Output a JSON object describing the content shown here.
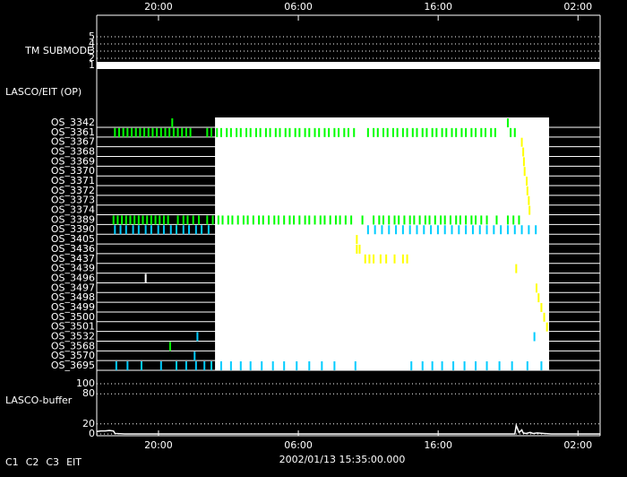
{
  "chart_data": {
    "type": "timeline",
    "timestamp": "2002/01/13 15:35:00.000",
    "xlim": [
      0,
      36
    ],
    "xticks": [
      {
        "value": 4.4167,
        "label": "20:00"
      },
      {
        "value": 14.4167,
        "label": "06:00"
      },
      {
        "value": 24.4167,
        "label": "16:00"
      },
      {
        "value": 34.4167,
        "label": "02:00"
      }
    ],
    "submode": {
      "label": "TM SUBMODE",
      "ylim": [
        0.5,
        5.5
      ],
      "yticks": [
        1,
        2,
        3,
        4,
        5
      ],
      "x": [
        0,
        36
      ],
      "values": [
        1,
        1
      ],
      "color": "#ffffff"
    },
    "ops": {
      "label": "LASCO/EIT (OP)",
      "white_range": [
        8.46,
        32.35
      ],
      "rows": [
        {
          "name": "OS_3342",
          "color": "#00ff00",
          "events": [
            5.4,
            29.4
          ]
        },
        {
          "name": "OS_3361",
          "color": "#00ff00",
          "events": [
            1.3,
            1.6,
            1.9,
            2.2,
            2.5,
            2.8,
            3.1,
            3.4,
            3.7,
            4.0,
            4.3,
            4.6,
            4.9,
            5.2,
            5.5,
            5.8,
            6.1,
            6.4,
            6.7,
            7.9,
            8.2,
            8.6,
            8.9,
            9.3,
            9.6,
            10.0,
            10.3,
            10.7,
            11.0,
            11.4,
            11.7,
            12.1,
            12.4,
            12.8,
            13.1,
            13.5,
            13.8,
            14.2,
            14.5,
            14.9,
            15.2,
            15.6,
            15.9,
            16.3,
            16.6,
            17.0,
            17.3,
            17.7,
            18.0,
            18.4,
            19.4,
            19.8,
            20.1,
            20.5,
            20.8,
            21.2,
            21.5,
            21.9,
            22.2,
            22.6,
            22.9,
            23.3,
            23.6,
            24.0,
            24.3,
            24.7,
            25.0,
            25.4,
            25.7,
            26.1,
            26.4,
            26.8,
            27.1,
            27.5,
            27.8,
            28.2,
            28.5,
            29.6,
            29.9
          ]
        },
        {
          "name": "OS_3367",
          "color": "#ffff00",
          "events": [
            30.4
          ]
        },
        {
          "name": "OS_3368",
          "color": "#ffff00",
          "events": [
            30.5
          ]
        },
        {
          "name": "OS_3369",
          "color": "#ffff00",
          "events": [
            30.55
          ]
        },
        {
          "name": "OS_3370",
          "color": "#ffff00",
          "events": [
            30.6
          ]
        },
        {
          "name": "OS_3371",
          "color": "#ffff00",
          "events": [
            30.75
          ]
        },
        {
          "name": "OS_3372",
          "color": "#ffff00",
          "events": [
            30.8
          ]
        },
        {
          "name": "OS_3373",
          "color": "#ffff00",
          "events": [
            30.9
          ]
        },
        {
          "name": "OS_3374",
          "color": "#ffff00",
          "events": [
            30.95
          ]
        },
        {
          "name": "OS_3389",
          "color": "#00ff00",
          "events": [
            1.2,
            1.5,
            1.8,
            2.1,
            2.4,
            2.7,
            3.0,
            3.3,
            3.6,
            3.9,
            4.2,
            4.5,
            4.8,
            5.1,
            5.8,
            6.2,
            6.5,
            6.9,
            7.3,
            7.9,
            8.3,
            8.7,
            9.0,
            9.4,
            9.7,
            10.1,
            10.5,
            10.8,
            11.2,
            11.6,
            11.9,
            12.3,
            12.7,
            13.0,
            13.4,
            13.8,
            14.1,
            14.5,
            14.9,
            15.2,
            15.6,
            16.0,
            16.3,
            16.7,
            17.1,
            17.4,
            17.8,
            18.2,
            19.0,
            19.8,
            20.2,
            20.5,
            20.9,
            21.3,
            21.6,
            22.0,
            22.4,
            22.7,
            23.1,
            23.5,
            23.8,
            24.2,
            24.6,
            24.9,
            25.3,
            25.7,
            26.0,
            26.4,
            26.8,
            27.1,
            27.5,
            27.9,
            28.6,
            29.4,
            29.8,
            30.2
          ]
        },
        {
          "name": "OS_3390",
          "color": "#00ccff",
          "events": [
            1.3,
            1.7,
            2.1,
            2.6,
            3.0,
            3.5,
            3.9,
            4.4,
            4.8,
            5.3,
            5.7,
            6.2,
            6.6,
            7.1,
            7.5,
            8.0,
            19.4,
            19.9,
            20.4,
            20.9,
            21.4,
            21.9,
            22.4,
            22.9,
            23.4,
            23.9,
            24.4,
            24.9,
            25.4,
            25.9,
            26.4,
            26.9,
            27.4,
            27.9,
            28.4,
            28.9,
            29.4,
            29.9,
            30.4,
            30.9,
            31.4
          ]
        },
        {
          "name": "OS_3405",
          "color": "#ffff00",
          "events": [
            18.6
          ]
        },
        {
          "name": "OS_3436",
          "color": "#ffff00",
          "events": [
            18.6,
            18.8
          ]
        },
        {
          "name": "OS_3437",
          "color": "#ffff00",
          "events": [
            19.2,
            19.5,
            19.8,
            20.3,
            20.7,
            21.3,
            21.9,
            22.2
          ]
        },
        {
          "name": "OS_3439",
          "color": "#ffff00",
          "events": [
            30.0
          ]
        },
        {
          "name": "OS_3496",
          "color": "#ffffff",
          "events": [
            3.5
          ]
        },
        {
          "name": "OS_3497",
          "color": "#ffff00",
          "events": [
            31.45
          ]
        },
        {
          "name": "OS_3498",
          "color": "#ffff00",
          "events": [
            31.6
          ]
        },
        {
          "name": "OS_3499",
          "color": "#ffff00",
          "events": [
            31.8
          ]
        },
        {
          "name": "OS_3500",
          "color": "#ffff00",
          "events": [
            32.0
          ]
        },
        {
          "name": "OS_3501",
          "color": "#ffff00",
          "events": [
            32.2
          ]
        },
        {
          "name": "OS_3532",
          "color": "#00ccff",
          "events": [
            7.2,
            31.3
          ]
        },
        {
          "name": "OS_3568",
          "color": "#00ff00",
          "events": [
            5.25
          ]
        },
        {
          "name": "OS_3570",
          "color": "#00ccff",
          "events": [
            7.0
          ]
        },
        {
          "name": "OS_3695",
          "color": "#00ccff",
          "events": [
            1.4,
            2.2,
            3.2,
            4.6,
            5.7,
            6.4,
            7.1,
            7.7,
            8.2,
            8.9,
            9.6,
            10.3,
            11.0,
            11.8,
            12.6,
            13.4,
            14.3,
            15.2,
            16.1,
            17.0,
            18.5,
            22.5,
            23.3,
            24.0,
            24.7,
            25.5,
            26.3,
            27.1,
            27.9,
            28.8,
            29.7,
            30.8,
            31.8
          ]
        }
      ]
    },
    "buffer": {
      "label": "LASCO-buffer",
      "ylim": [
        0,
        100
      ],
      "yticks": [
        0,
        20,
        80,
        100
      ],
      "color": "#ffffff",
      "x": [
        0,
        0.3,
        0.6,
        0.9,
        1.2,
        1.3,
        2,
        29.9,
        30.0,
        30.1,
        30.2,
        30.4,
        30.5,
        30.7,
        31.0,
        31.2,
        31.5,
        32.0,
        32.5,
        36
      ],
      "values": [
        5,
        6,
        6,
        7,
        6,
        1,
        0,
        0,
        17,
        10,
        3,
        8,
        2,
        1,
        3,
        1,
        2,
        1,
        0,
        0
      ]
    },
    "legend": [
      {
        "name": "C1",
        "color": "#ff3333"
      },
      {
        "name": "C2",
        "color": "#33ff33"
      },
      {
        "name": "C3",
        "color": "#66ddff"
      },
      {
        "name": "EIT",
        "color": "#ffffff"
      }
    ]
  }
}
